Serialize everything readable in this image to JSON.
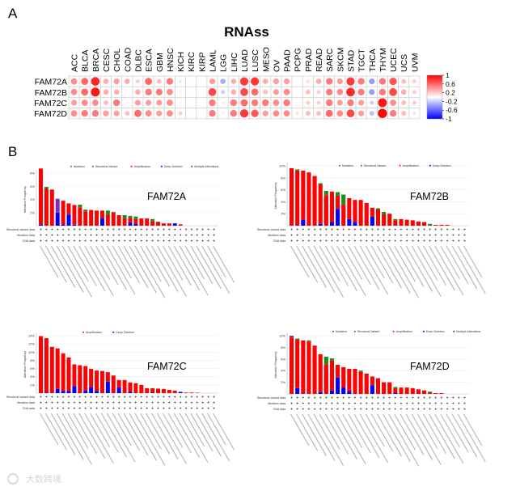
{
  "panel_labels": {
    "a": "A",
    "b": "B"
  },
  "watermark": "大数跨境",
  "chart_data": [
    {
      "type": "heatmap",
      "title": "RNAss",
      "columns": [
        "ACC",
        "BLCA",
        "BRCA",
        "CESC",
        "CHOL",
        "COAD",
        "DLBC",
        "ESCA",
        "GBM",
        "HNSC",
        "KICH",
        "KIRC",
        "KIRP",
        "LAML",
        "LGG",
        "LIHC",
        "LUAD",
        "LUSC",
        "MESO",
        "OV",
        "PAAD",
        "PCPG",
        "PRAD",
        "READ",
        "SARC",
        "SKCM",
        "STAD",
        "TGCT",
        "THCA",
        "THYM",
        "UCEC",
        "UCS",
        "UVM"
      ],
      "rows": [
        "FAM72A",
        "FAM72B",
        "FAM72C",
        "FAM72D"
      ],
      "values": [
        [
          0.35,
          0.45,
          0.65,
          0.25,
          0.3,
          0.25,
          0.15,
          0.45,
          0.2,
          0.4,
          -0.08,
          -0.03,
          -0.03,
          0.3,
          -0.25,
          0.25,
          0.6,
          0.6,
          0.25,
          0.3,
          0.3,
          0.02,
          0.1,
          0.25,
          0.4,
          0.3,
          0.6,
          0.4,
          -0.3,
          0.4,
          0.5,
          0.2,
          0.15
        ],
        [
          0.35,
          0.45,
          0.7,
          0.25,
          0.25,
          0.03,
          0.25,
          0.4,
          0.4,
          0.35,
          0.05,
          -0.03,
          0.02,
          0.55,
          -0.15,
          0.25,
          0.55,
          0.45,
          0.2,
          0.3,
          0.35,
          0.02,
          0.2,
          0.15,
          0.4,
          0.35,
          0.65,
          0.4,
          -0.3,
          0.4,
          0.55,
          0.25,
          0.15
        ],
        [
          0.3,
          0.35,
          0.35,
          0.2,
          0.4,
          0.05,
          0.3,
          0.3,
          0.3,
          0.35,
          0.03,
          0.02,
          0.02,
          0.4,
          0.08,
          0.4,
          0.45,
          0.4,
          0.4,
          0.35,
          0.4,
          0.02,
          0.15,
          0.15,
          0.4,
          0.3,
          0.4,
          0.3,
          -0.15,
          0.7,
          0.35,
          0.2,
          0.15
        ],
        [
          0.35,
          0.4,
          0.4,
          0.3,
          0.3,
          0.2,
          0.45,
          0.35,
          0.3,
          0.35,
          0.15,
          0.03,
          0.02,
          0.4,
          -0.05,
          0.4,
          0.6,
          0.5,
          0.3,
          0.35,
          0.35,
          0.1,
          0.2,
          0.2,
          0.45,
          0.35,
          0.55,
          0.3,
          -0.2,
          0.75,
          0.4,
          0.2,
          0.1
        ]
      ],
      "colorbar": {
        "ticks": [
          "1",
          "0.6",
          "0.2",
          "-0.2",
          "-0.6",
          "-1"
        ],
        "range": [
          -1,
          1
        ],
        "low_color": "#0000ff",
        "mid_color": "#ffffff",
        "high_color": "#ff0000"
      }
    },
    {
      "type": "bar",
      "stacked": true,
      "title": "FAM72A",
      "ylabel": "Alteration Frequency",
      "ylim": [
        0,
        8
      ],
      "yticks": [
        "2%",
        "4%",
        "6%",
        "8%"
      ],
      "legend": [
        "Mutation",
        "Structural Variant",
        "Amplification",
        "Deep Deletion",
        "Multiple Alterations"
      ],
      "row_labels": [
        "Structural variant data",
        "Mutation data",
        "CNA data"
      ],
      "series": {
        "deep_deletion": [
          0.2,
          0,
          0,
          2.0,
          0.2,
          1.7,
          0.15,
          0,
          0,
          0,
          0,
          1.1,
          0,
          0,
          0,
          0,
          0.5,
          0.3,
          0,
          0,
          0,
          0,
          0,
          0,
          0.35,
          0,
          0,
          0,
          0,
          0,
          0,
          0
        ],
        "amplification": [
          8.5,
          5.6,
          5.5,
          0,
          3.6,
          1.7,
          3.0,
          2.8,
          2.2,
          2.4,
          2.3,
          1.2,
          1.7,
          2.0,
          1.6,
          1.1,
          0.7,
          0.7,
          1.1,
          1.1,
          0.7,
          0.6,
          0.35,
          0.35,
          0,
          0.2,
          0,
          0,
          0,
          0,
          0,
          0
        ],
        "mutation": [
          0,
          0.3,
          0,
          0,
          0,
          0,
          0,
          0.4,
          0.25,
          0,
          0,
          0,
          0.6,
          0.1,
          0,
          0.5,
          0.3,
          0.4,
          0,
          0,
          0.3,
          0,
          0,
          0,
          0,
          0,
          0,
          0,
          0,
          0,
          0,
          0
        ],
        "structural_variant": [
          0,
          0,
          0,
          2.1,
          0,
          0,
          0,
          0,
          0,
          0,
          0,
          0,
          0,
          0,
          0,
          0,
          0,
          0,
          0,
          0,
          0,
          0,
          0,
          0,
          0,
          0,
          0,
          0,
          0,
          0,
          0,
          0
        ]
      }
    },
    {
      "type": "bar",
      "stacked": true,
      "title": "FAM72B",
      "ylabel": "Alteration Frequency",
      "ylim": [
        0,
        10
      ],
      "yticks": [
        "2%",
        "4%",
        "6%",
        "8%",
        "10%"
      ],
      "legend": [
        "Mutation",
        "Structural Variant",
        "Amplification",
        "Deep Deletion"
      ],
      "row_labels": [
        "Structural variant data",
        "Mutation data",
        "CNA data"
      ],
      "series": {
        "deep_deletion": [
          0,
          0.1,
          1.0,
          0,
          0,
          0.3,
          0,
          0.6,
          2.8,
          0,
          1.1,
          0.6,
          0,
          0,
          1.5,
          0,
          0,
          0,
          0.1,
          0,
          0,
          0,
          0,
          0,
          0,
          0,
          0,
          0,
          0,
          0,
          0
        ],
        "amplification": [
          9.6,
          9.1,
          8.2,
          8.9,
          8.3,
          6.6,
          5.1,
          5.1,
          2.2,
          3.5,
          3.5,
          3.7,
          4.3,
          3.8,
          1.5,
          2.7,
          1.9,
          2.0,
          0.8,
          1.1,
          1.0,
          0.9,
          0.7,
          0.6,
          0,
          0.15,
          0.15,
          0.15,
          0,
          0,
          0
        ],
        "mutation": [
          0,
          0.2,
          0,
          0,
          0,
          0.2,
          0.7,
          0,
          0.6,
          1.7,
          0,
          0,
          0,
          0,
          0,
          0.2,
          0.4,
          0,
          0.2,
          0,
          0,
          0,
          0,
          0,
          0.3,
          0,
          0,
          0,
          0,
          0,
          0
        ],
        "structural_variant": [
          0,
          0,
          0,
          0,
          0,
          0,
          0,
          0,
          0,
          0,
          0,
          0,
          0,
          0,
          0,
          0,
          0,
          0,
          0,
          0,
          0,
          0,
          0,
          0,
          0,
          0,
          0,
          0,
          0,
          0,
          0
        ]
      }
    },
    {
      "type": "bar",
      "stacked": true,
      "title": "FAM72C",
      "ylabel": "Alteration Frequency",
      "ylim": [
        0,
        14
      ],
      "yticks": [
        "2%",
        "4%",
        "6%",
        "8%",
        "10%",
        "12%",
        "14%"
      ],
      "legend": [
        "Amplification",
        "Deep Deletion"
      ],
      "row_labels": [
        "Structural variant data",
        "Mutation data",
        "CNA data"
      ],
      "series": {
        "deep_deletion": [
          0,
          0.1,
          0,
          1.0,
          0.5,
          0.5,
          1.7,
          0,
          0.6,
          1.5,
          0.5,
          0,
          2.8,
          0,
          1.4,
          0,
          0.3,
          0,
          0,
          0,
          0.1,
          0,
          0,
          0,
          0,
          0.3,
          0,
          0,
          0,
          0,
          0,
          0
        ],
        "amplification": [
          13.9,
          13.3,
          11.3,
          9.9,
          9.2,
          8.2,
          5.3,
          6.8,
          6.0,
          4.4,
          5.0,
          5.4,
          2.3,
          4.3,
          1.8,
          3.2,
          2.3,
          2.4,
          2.0,
          1.2,
          1.1,
          1.1,
          1.0,
          0.8,
          0.6,
          0,
          0.15,
          0.15,
          0.1,
          0,
          0,
          0
        ],
        "mutation": [
          0,
          0,
          0,
          0,
          0,
          0,
          0,
          0,
          0,
          0,
          0,
          0,
          0,
          0,
          0,
          0,
          0,
          0,
          0,
          0,
          0,
          0,
          0,
          0,
          0,
          0,
          0,
          0,
          0,
          0,
          0,
          0
        ],
        "structural_variant": [
          0,
          0,
          0,
          0,
          0,
          0,
          0,
          0,
          0,
          0,
          0,
          0,
          0,
          0,
          0,
          0,
          0,
          0,
          0,
          0,
          0,
          0,
          0,
          0,
          0,
          0,
          0,
          0,
          0,
          0,
          0,
          0
        ]
      }
    },
    {
      "type": "bar",
      "stacked": true,
      "title": "FAM72D",
      "ylabel": "Alteration Frequency",
      "ylim": [
        0,
        10
      ],
      "yticks": [
        "2%",
        "4%",
        "6%",
        "8%",
        "10%"
      ],
      "legend": [
        "Mutation",
        "Structural Variant",
        "Amplification",
        "Deep Deletion",
        "Multiple Alterations"
      ],
      "row_labels": [
        "Structural variant data",
        "Mutation data",
        "CNA data"
      ],
      "series": {
        "deep_deletion": [
          0,
          1.0,
          0.1,
          0,
          0,
          0.3,
          0,
          0.6,
          2.8,
          1.1,
          0.5,
          0,
          0,
          0,
          1.5,
          0,
          0,
          0,
          0.2,
          0,
          0,
          0,
          0,
          0,
          0,
          0,
          0,
          0,
          0,
          0,
          0
        ],
        "amplification": [
          9.7,
          8.3,
          9.1,
          9.0,
          8.3,
          6.5,
          5.1,
          5.1,
          2.2,
          3.5,
          3.8,
          4.3,
          3.8,
          3.5,
          1.5,
          2.7,
          2.0,
          2.0,
          0.8,
          1.1,
          1.1,
          1.0,
          0.8,
          0.6,
          0.2,
          0.15,
          0.15,
          0,
          0,
          0,
          0
        ],
        "mutation": [
          0,
          0.2,
          0,
          0.2,
          0,
          0,
          1.3,
          0.4,
          0,
          0,
          0,
          0,
          0.2,
          0,
          0,
          0,
          0,
          0,
          0.2,
          0,
          0,
          0,
          0,
          0,
          0.2,
          0,
          0,
          0,
          0,
          0,
          0
        ],
        "structural_variant": [
          0.3,
          0,
          0,
          0,
          0,
          0,
          0,
          0,
          0,
          0,
          0,
          0,
          0,
          0,
          0,
          0,
          0,
          0,
          0,
          0,
          0,
          0,
          0,
          0,
          0,
          0,
          0,
          0,
          0,
          0,
          0
        ]
      }
    }
  ],
  "colors": {
    "amplification": "#ff0000",
    "deep_deletion": "#0000ff",
    "mutation": "#1f8a1f",
    "structural_variant": "#7b2fbe",
    "multiple_alterations": "#444444"
  }
}
